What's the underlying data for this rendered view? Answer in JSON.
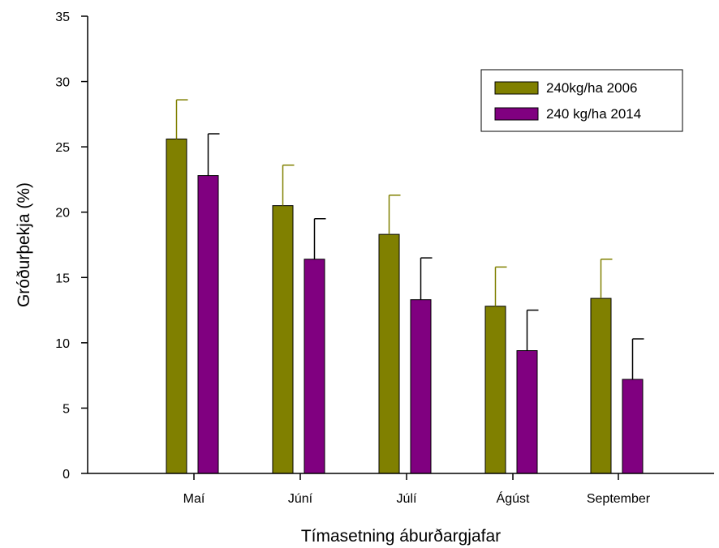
{
  "chart_data": {
    "type": "bar",
    "title": "",
    "xlabel": "Tímasetning áburðargjafar",
    "ylabel": "Gróðurþekja (%)",
    "ylim": [
      0,
      35
    ],
    "yticks": [
      0,
      5,
      10,
      15,
      20,
      25,
      30,
      35
    ],
    "categories": [
      "Maí",
      "Júní",
      "Júlí",
      "Ágúst",
      "September"
    ],
    "legend_position": "top-right",
    "grid": false,
    "series": [
      {
        "name": "240kg/ha 2006",
        "color": "#808000",
        "values": [
          25.6,
          20.5,
          18.3,
          12.8,
          13.4
        ],
        "error_upper": [
          3.0,
          3.1,
          3.0,
          3.0,
          3.0
        ]
      },
      {
        "name": "240 kg/ha 2014",
        "color": "#800080",
        "values": [
          22.8,
          16.4,
          13.3,
          9.4,
          7.2
        ],
        "error_upper": [
          3.2,
          3.1,
          3.2,
          3.1,
          3.1
        ]
      }
    ]
  }
}
